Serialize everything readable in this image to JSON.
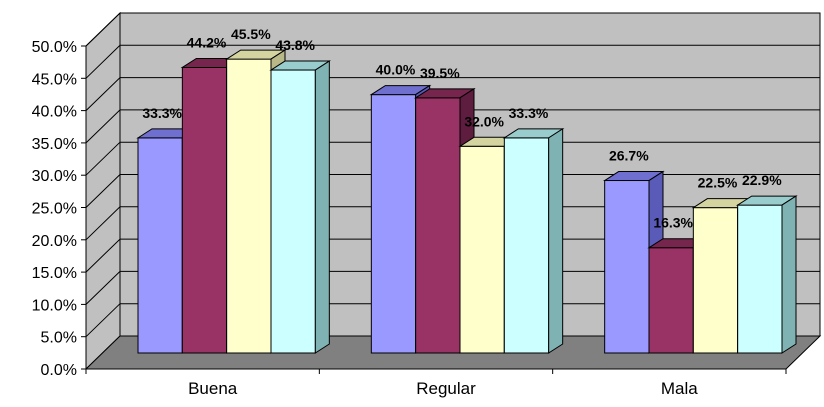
{
  "chart_data": {
    "type": "bar",
    "categories": [
      "Buena",
      "Regular",
      "Mala"
    ],
    "series": [
      {
        "values": [
          33.3,
          40.0,
          26.7
        ],
        "color": "#9999ff",
        "top_color": "#6f6fd0",
        "side_color": "#5a5ab8"
      },
      {
        "values": [
          44.2,
          39.5,
          16.3
        ],
        "color": "#993366",
        "top_color": "#76254d",
        "side_color": "#5e1c3e"
      },
      {
        "values": [
          45.5,
          32.0,
          22.5
        ],
        "color": "#ffffcc",
        "top_color": "#d4d4a0",
        "side_color": "#b8b888"
      },
      {
        "values": [
          43.8,
          33.3,
          22.9
        ],
        "color": "#ccffff",
        "top_color": "#99cccc",
        "side_color": "#7fb3b3"
      }
    ],
    "data_labels": [
      [
        "33.3%",
        "40.0%",
        "26.7%"
      ],
      [
        "44.2%",
        "39.5%",
        "16.3%"
      ],
      [
        "45.5%",
        "32.0%",
        "22.5%"
      ],
      [
        "43.8%",
        "33.3%",
        "22.9%"
      ]
    ],
    "y_ticks": [
      "0.0%",
      "5.0%",
      "10.0%",
      "15.0%",
      "20.0%",
      "25.0%",
      "30.0%",
      "35.0%",
      "40.0%",
      "45.0%",
      "50.0%"
    ],
    "ylim": [
      0,
      50
    ],
    "grid": true,
    "three_d": true,
    "title": "",
    "xlabel": "",
    "ylabel": "",
    "colors": {
      "wall": "#c0c0c0",
      "floor": "#808080",
      "grid": "#000000"
    }
  }
}
